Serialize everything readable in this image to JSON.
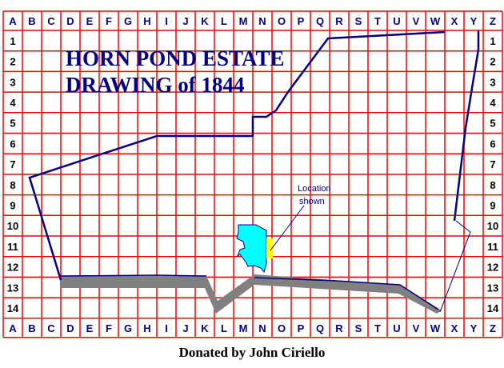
{
  "title": {
    "line1": "HORN POND ESTATE",
    "line2": "DRAWING  of  1844"
  },
  "columns": [
    "A",
    "B",
    "C",
    "D",
    "E",
    "F",
    "G",
    "H",
    "I",
    "J",
    "K",
    "L",
    "M",
    "N",
    "O",
    "P",
    "Q",
    "R",
    "S",
    "T",
    "U",
    "V",
    "W",
    "X",
    "Y",
    "Z"
  ],
  "rows": [
    "1",
    "2",
    "3",
    "4",
    "5",
    "6",
    "7",
    "8",
    "9",
    "10",
    "11",
    "12",
    "13",
    "14"
  ],
  "annotation": {
    "line1": "Location",
    "line2": "shown"
  },
  "credit": "Donated by John Ciriello",
  "colors": {
    "grid": "#ff0000",
    "boundary": "#000080",
    "pond": "#00ffff",
    "location": "#ffff00",
    "road": "#808080"
  }
}
